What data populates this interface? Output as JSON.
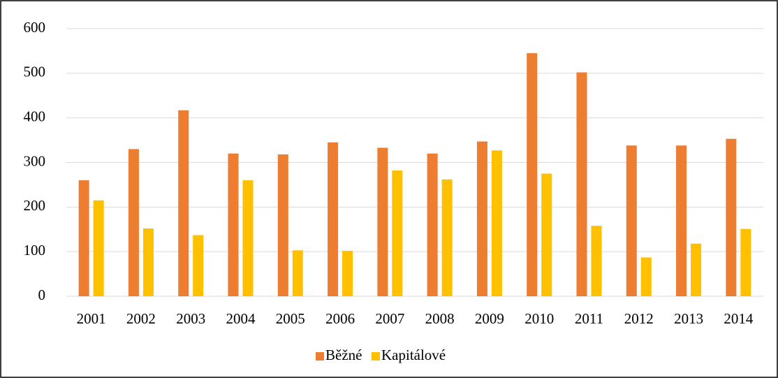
{
  "chart_data": {
    "type": "bar",
    "categories": [
      "2001",
      "2002",
      "2003",
      "2004",
      "2005",
      "2006",
      "2007",
      "2008",
      "2009",
      "2010",
      "2011",
      "2012",
      "2013",
      "2014"
    ],
    "series": [
      {
        "name": "Běžné",
        "color": "#ed7d31",
        "values": [
          260,
          330,
          417,
          320,
          318,
          345,
          333,
          320,
          347,
          545,
          502,
          338,
          338,
          353
        ]
      },
      {
        "name": "Kapitálové",
        "color": "#ffc000",
        "values": [
          215,
          152,
          137,
          260,
          103,
          102,
          282,
          262,
          327,
          275,
          158,
          87,
          118,
          151
        ]
      }
    ],
    "ylim": [
      0,
      600
    ],
    "yticks": [
      0,
      100,
      200,
      300,
      400,
      500,
      600
    ],
    "grid": true,
    "legend": "bottom"
  }
}
